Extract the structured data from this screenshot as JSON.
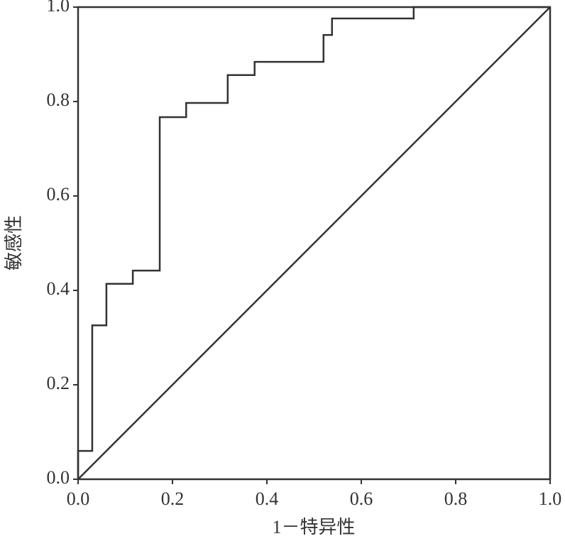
{
  "chart_data": {
    "type": "line",
    "xlabel": "1－特异性",
    "ylabel": "敏感性",
    "series": [
      {
        "color": "#333333",
        "x": [
          0,
          0,
          0.03,
          0.03,
          0.06,
          0.06,
          0.116,
          0.116,
          0.173,
          0.173,
          0.229,
          0.229,
          0.317,
          0.317,
          0.374,
          0.374,
          0.52,
          0.52,
          0.538,
          0.538,
          0.711,
          0.711,
          1.0
        ],
        "values": [
          0,
          0.06,
          0.06,
          0.326,
          0.326,
          0.414,
          0.414,
          0.442,
          0.442,
          0.767,
          0.767,
          0.797,
          0.797,
          0.856,
          0.856,
          0.884,
          0.884,
          0.941,
          0.941,
          0.976,
          0.976,
          1.0,
          1.0
        ]
      },
      {
        "color": "#333333",
        "x": [
          0,
          1
        ],
        "values": [
          0,
          1
        ]
      }
    ],
    "xlim": [
      0,
      1
    ],
    "ylim": [
      0,
      1
    ],
    "xticks": [
      {
        "value": 0,
        "label": "0.0"
      },
      {
        "value": 0.2,
        "label": "0.2"
      },
      {
        "value": 0.4,
        "label": "0.4"
      },
      {
        "value": 0.6,
        "label": "0.6"
      },
      {
        "value": 0.8,
        "label": "0.8"
      },
      {
        "value": 1,
        "label": "1.0"
      }
    ],
    "yticks": [
      {
        "value": 0,
        "label": "0.0"
      },
      {
        "value": 0.2,
        "label": "0.2"
      },
      {
        "value": 0.4,
        "label": "0.4"
      },
      {
        "value": 0.6,
        "label": "0.6"
      },
      {
        "value": 0.8,
        "label": "0.8"
      },
      {
        "value": 1,
        "label": "1.0"
      }
    ],
    "grid": false
  }
}
